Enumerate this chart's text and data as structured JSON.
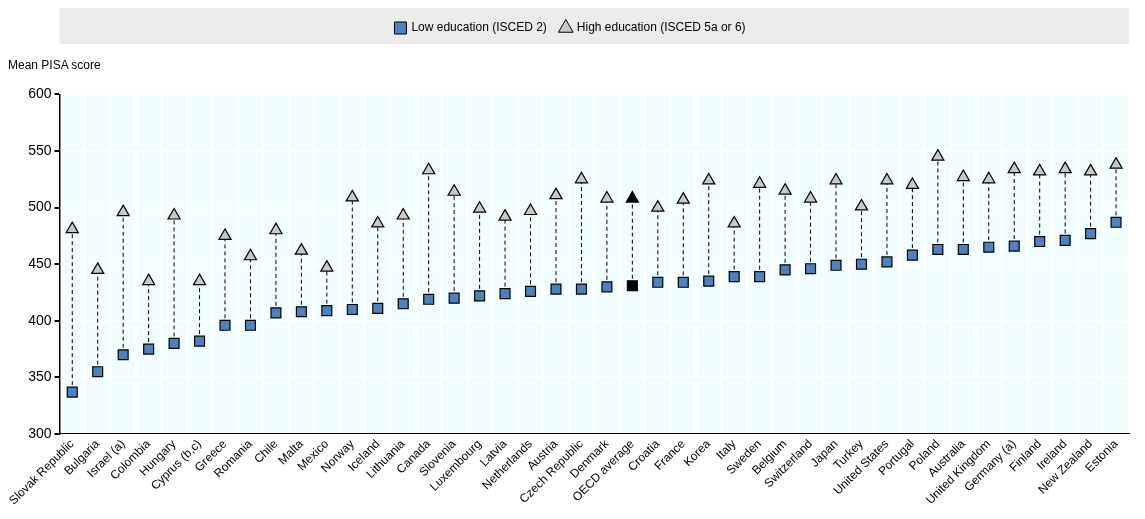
{
  "chart_data": {
    "type": "scatter",
    "ylabel": "Mean PISA score",
    "categories": [
      "Slovak Republic",
      "Bulgaria",
      "Israel (a)",
      "Colombia",
      "Hungary",
      "Cyprus (b,c)",
      "Greece",
      "Romania",
      "Chile",
      "Malta",
      "Mexico",
      "Norway",
      "Iceland",
      "Lithuania",
      "Canada",
      "Slovenia",
      "Luxembourg",
      "Latvia",
      "Netherlands",
      "Austria",
      "Czech Republic",
      "Denmark",
      "OECD average",
      "Croatia",
      "France",
      "Korea",
      "Italy",
      "Sweden",
      "Belgium",
      "Switzerland",
      "Japan",
      "Turkey",
      "United States",
      "Portugal",
      "Poland",
      "Australia",
      "United Kingdom",
      "Germany (a)",
      "Finland",
      "Ireland",
      "New Zealand",
      "Estonia"
    ],
    "series": [
      {
        "name": "Low education (ISCED 2)",
        "marker": "square",
        "color": "#4f81bd",
        "colors": [
          "#4f81bd",
          "#4f81bd",
          "#4f81bd",
          "#4f81bd",
          "#4f81bd",
          "#4f81bd",
          "#4f81bd",
          "#4f81bd",
          "#4f81bd",
          "#4f81bd",
          "#4f81bd",
          "#4f81bd",
          "#4f81bd",
          "#4f81bd",
          "#4f81bd",
          "#4f81bd",
          "#4f81bd",
          "#4f81bd",
          "#4f81bd",
          "#4f81bd",
          "#4f81bd",
          "#4f81bd",
          "#000000",
          "#4f81bd",
          "#4f81bd",
          "#4f81bd",
          "#4f81bd",
          "#4f81bd",
          "#4f81bd",
          "#4f81bd",
          "#4f81bd",
          "#4f81bd",
          "#4f81bd",
          "#4f81bd",
          "#4f81bd",
          "#4f81bd",
          "#4f81bd",
          "#4f81bd",
          "#4f81bd",
          "#4f81bd",
          "#4f81bd",
          "#4f81bd"
        ],
        "values": [
          337,
          355,
          370,
          375,
          380,
          382,
          396,
          396,
          407,
          408,
          409,
          410,
          411,
          415,
          419,
          420,
          422,
          424,
          426,
          428,
          428,
          430,
          431,
          434,
          434,
          435,
          439,
          439,
          445,
          446,
          449,
          450,
          452,
          458,
          463,
          463,
          465,
          466,
          470,
          471,
          477,
          487
        ]
      },
      {
        "name": "High education (ISCED 5a or 6)",
        "marker": "triangle",
        "color": "#c8c8c8",
        "colors": [
          "#c8c8c8",
          "#c8c8c8",
          "#c8c8c8",
          "#c8c8c8",
          "#c8c8c8",
          "#c8c8c8",
          "#c8c8c8",
          "#c8c8c8",
          "#c8c8c8",
          "#c8c8c8",
          "#c8c8c8",
          "#c8c8c8",
          "#c8c8c8",
          "#c8c8c8",
          "#c8c8c8",
          "#c8c8c8",
          "#c8c8c8",
          "#c8c8c8",
          "#c8c8c8",
          "#c8c8c8",
          "#c8c8c8",
          "#c8c8c8",
          "#000000",
          "#c8c8c8",
          "#c8c8c8",
          "#c8c8c8",
          "#c8c8c8",
          "#c8c8c8",
          "#c8c8c8",
          "#c8c8c8",
          "#c8c8c8",
          "#c8c8c8",
          "#c8c8c8",
          "#c8c8c8",
          "#c8c8c8",
          "#c8c8c8",
          "#c8c8c8",
          "#c8c8c8",
          "#c8c8c8",
          "#c8c8c8",
          "#c8c8c8",
          "#c8c8c8"
        ],
        "values": [
          481,
          445,
          496,
          435,
          493,
          435,
          475,
          457,
          480,
          462,
          447,
          509,
          486,
          493,
          533,
          514,
          499,
          492,
          497,
          511,
          525,
          508,
          508,
          500,
          507,
          524,
          486,
          521,
          515,
          508,
          524,
          501,
          524,
          520,
          545,
          527,
          525,
          534,
          532,
          534,
          532,
          538
        ]
      }
    ],
    "ylim": [
      300,
      600
    ],
    "yticks": [
      300,
      350,
      400,
      450,
      500,
      550,
      600
    ],
    "grid": true,
    "legend": "top"
  }
}
